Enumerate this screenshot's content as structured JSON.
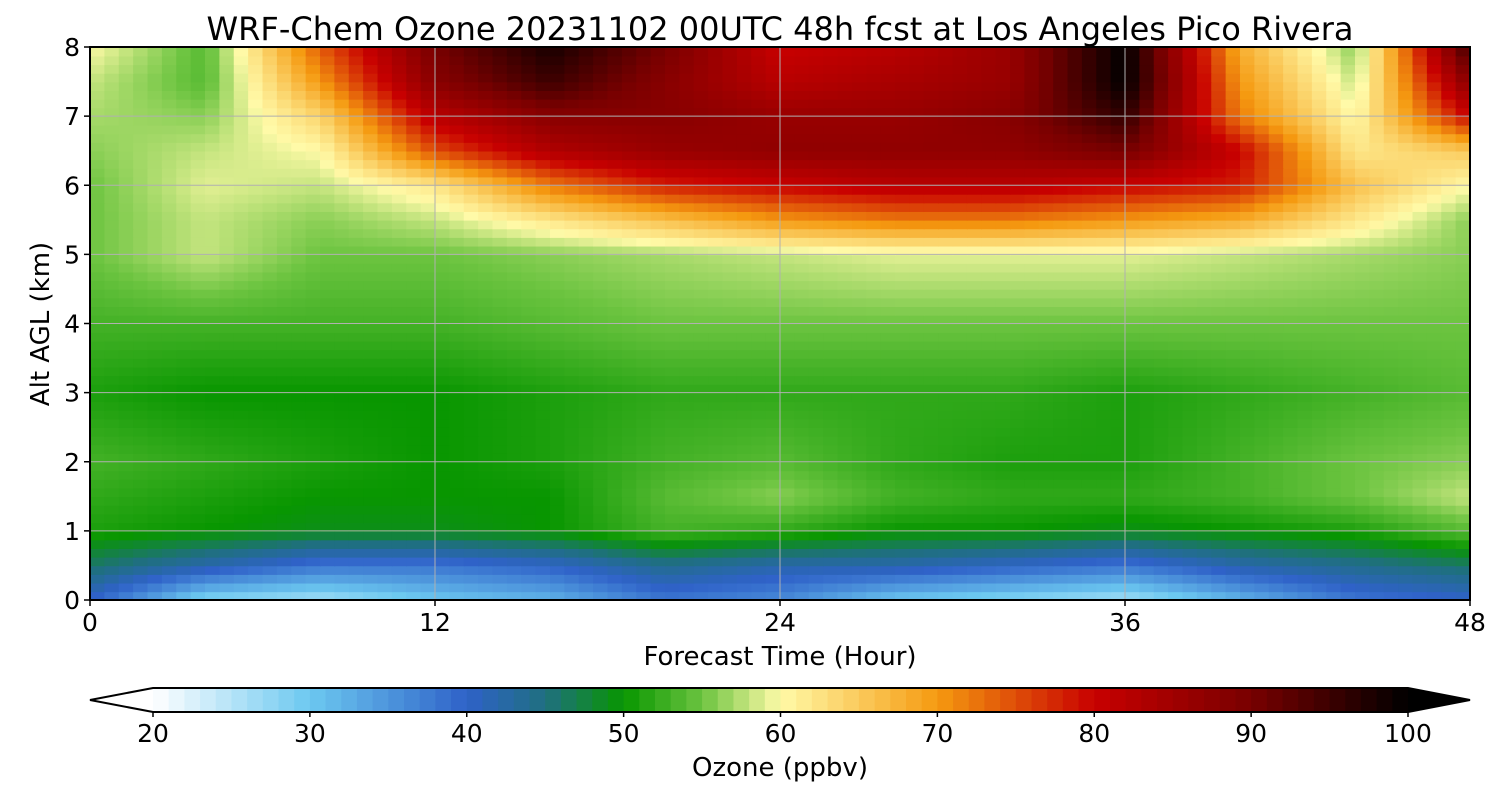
{
  "chart_data": {
    "type": "heatmap",
    "title": "WRF-Chem Ozone  20231102 00UTC 48h fcst at Los Angeles Pico Rivera",
    "xlabel": "Forecast Time (Hour)",
    "ylabel": "Alt AGL (km)",
    "xlim": [
      0,
      48
    ],
    "ylim": [
      0,
      8
    ],
    "xticks": [
      0,
      12,
      24,
      36,
      48
    ],
    "yticks": [
      0,
      1,
      2,
      3,
      4,
      5,
      6,
      7,
      8
    ],
    "grid": true,
    "x": [
      0,
      4,
      8,
      12,
      16,
      20,
      24,
      28,
      32,
      36,
      40,
      44,
      48
    ],
    "y": [
      0,
      0.5,
      1,
      1.5,
      2,
      3,
      4,
      5,
      5.5,
      6,
      6.5,
      7,
      7.5,
      8
    ],
    "z": [
      [
        40,
        28,
        26,
        30,
        32,
        38,
        36,
        30,
        28,
        26,
        32,
        38,
        40
      ],
      [
        46,
        42,
        38,
        38,
        40,
        44,
        42,
        42,
        40,
        38,
        42,
        44,
        46
      ],
      [
        51,
        50,
        49,
        49,
        50,
        53,
        52,
        50,
        50,
        49,
        50,
        51,
        54
      ],
      [
        52,
        51,
        50,
        50,
        50,
        54,
        56,
        53,
        52,
        52,
        53,
        55,
        58
      ],
      [
        53,
        52,
        51,
        50,
        51,
        53,
        54,
        52,
        51,
        51,
        53,
        55,
        56
      ],
      [
        51,
        50,
        50,
        50,
        51,
        52,
        52,
        52,
        52,
        51,
        52,
        53,
        54
      ],
      [
        53,
        53,
        53,
        53,
        54,
        55,
        55,
        55,
        55,
        55,
        55,
        55,
        55
      ],
      [
        55,
        58,
        55,
        55,
        56,
        57,
        58,
        59,
        59,
        59,
        58,
        57,
        56
      ],
      [
        55,
        58,
        56,
        58,
        62,
        66,
        70,
        72,
        72,
        70,
        68,
        62,
        56
      ],
      [
        55,
        59,
        58,
        62,
        72,
        78,
        80,
        82,
        82,
        80,
        78,
        66,
        60
      ],
      [
        56,
        58,
        60,
        75,
        83,
        86,
        87,
        87,
        87,
        90,
        80,
        62,
        65
      ],
      [
        57,
        56,
        64,
        82,
        88,
        88,
        86,
        86,
        88,
        96,
        72,
        60,
        80
      ],
      [
        58,
        54,
        70,
        88,
        95,
        88,
        82,
        84,
        86,
        100,
        70,
        58,
        88
      ],
      [
        60,
        54,
        74,
        90,
        98,
        90,
        80,
        82,
        86,
        100,
        68,
        56,
        95
      ]
    ],
    "colorbar": {
      "label": "Ozone  (ppbv)",
      "min": 20,
      "max": 100,
      "ticks": [
        20,
        30,
        40,
        50,
        60,
        70,
        80,
        90,
        100
      ],
      "extend": "both",
      "stops": [
        {
          "v": 20,
          "c": "#ffffff"
        },
        {
          "v": 30,
          "c": "#6cc8f0"
        },
        {
          "v": 40,
          "c": "#2f62c8"
        },
        {
          "v": 45,
          "c": "#1f6f80"
        },
        {
          "v": 50,
          "c": "#089600"
        },
        {
          "v": 55,
          "c": "#6cc440"
        },
        {
          "v": 60,
          "c": "#fffaa8"
        },
        {
          "v": 70,
          "c": "#f59a10"
        },
        {
          "v": 80,
          "c": "#c80000"
        },
        {
          "v": 90,
          "c": "#780000"
        },
        {
          "v": 100,
          "c": "#000000"
        }
      ]
    }
  }
}
